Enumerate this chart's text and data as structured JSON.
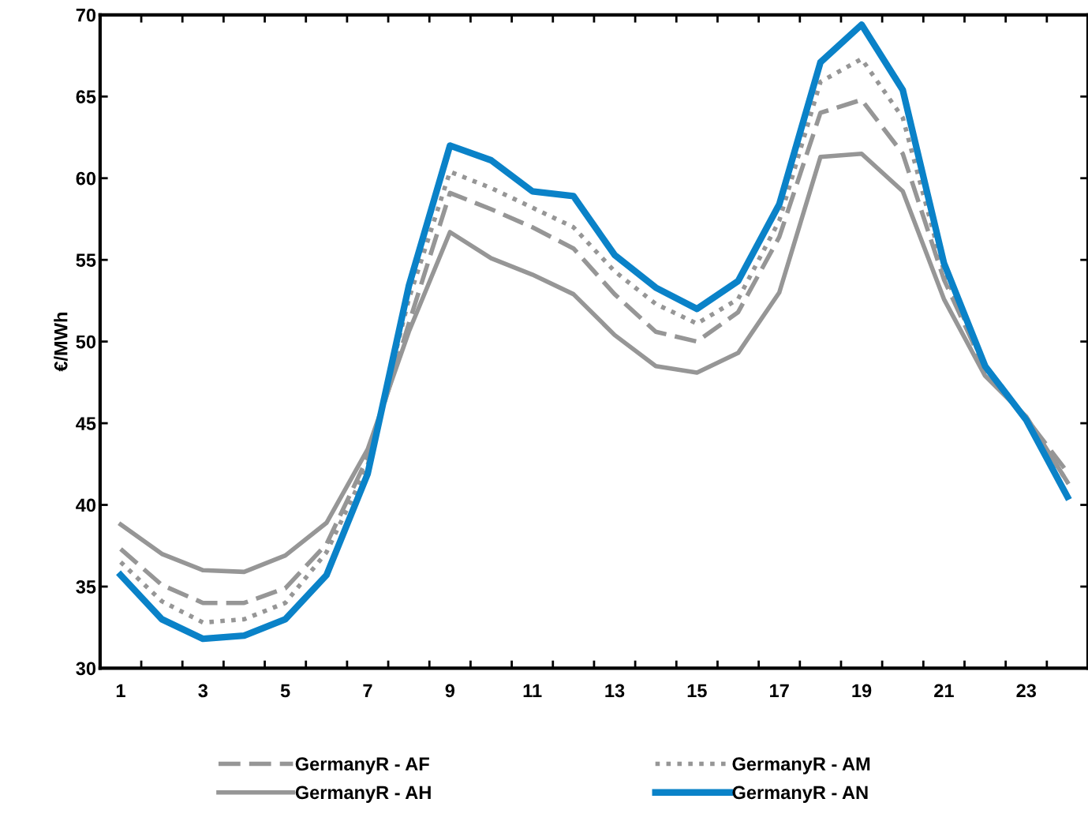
{
  "chart_data": {
    "type": "line",
    "ylabel": "€/MWh",
    "categories": [
      "1",
      null,
      "3",
      null,
      "5",
      null,
      "7",
      null,
      "9",
      null,
      "11",
      null,
      "13",
      null,
      "15",
      null,
      "17",
      null,
      "19",
      null,
      "21",
      null,
      "23",
      null
    ],
    "ylim": [
      30,
      70
    ],
    "yticks": [
      30,
      35,
      40,
      45,
      50,
      55,
      60,
      65,
      70
    ],
    "grid": false,
    "legend": "bottom",
    "marker": "none",
    "series": [
      {
        "name": "GermanyR - AF",
        "color": "#969696",
        "line_style": "dashed",
        "values": [
          37.3,
          35.1,
          34.0,
          34.0,
          34.9,
          37.6,
          42.9,
          51.1,
          59.1,
          58.1,
          57.0,
          55.7,
          52.9,
          50.6,
          50.0,
          51.8,
          56.4,
          64.0,
          64.8,
          61.5,
          53.8,
          48.3,
          45.3,
          42.0
        ]
      },
      {
        "name": "GermanyR - AH",
        "color": "#969696",
        "line_style": "solid",
        "values": [
          38.8,
          37.0,
          36.0,
          35.9,
          36.9,
          38.9,
          43.4,
          50.6,
          56.7,
          55.1,
          54.1,
          52.9,
          50.4,
          48.5,
          48.1,
          49.3,
          53.0,
          61.3,
          61.5,
          59.2,
          52.6,
          47.9,
          45.4,
          41.4
        ]
      },
      {
        "name": "GermanyR - AM",
        "color": "#969696",
        "line_style": "dotted",
        "values": [
          36.5,
          34.1,
          32.8,
          33.0,
          34.0,
          37.1,
          42.4,
          52.6,
          60.4,
          59.4,
          58.2,
          57.0,
          54.3,
          52.3,
          51.1,
          52.6,
          57.4,
          65.9,
          67.3,
          63.7,
          54.3,
          48.4,
          45.3,
          41.4
        ]
      },
      {
        "name": "GermanyR - AN",
        "color": "#0a82c8",
        "line_style": "solid",
        "values": [
          35.7,
          33.0,
          31.8,
          32.0,
          33.0,
          35.7,
          41.9,
          53.4,
          62.0,
          61.1,
          59.2,
          58.9,
          55.3,
          53.3,
          52.0,
          53.7,
          58.4,
          67.1,
          69.4,
          65.4,
          54.8,
          48.5,
          45.2,
          40.5
        ]
      }
    ]
  }
}
